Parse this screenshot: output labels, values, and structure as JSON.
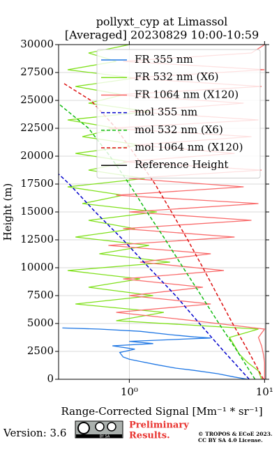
{
  "chart_data": {
    "type": "line",
    "title": "pollyxt_cyp at Limassol",
    "subtitle": "[Averaged] 20230829 10:00-10:59",
    "xlabel": "Range-Corrected Signal [Mm⁻¹ * sr⁻¹]",
    "ylabel": "Height (m)",
    "xscale": "log",
    "grid": true,
    "legend": "upper right",
    "xlim": [
      0.3,
      10.2
    ],
    "xticks": [
      {
        "value": 1,
        "label": "10⁰"
      },
      {
        "value": 10,
        "label": "10¹"
      }
    ],
    "ylim": [
      0,
      30000
    ],
    "yticks": [
      0,
      2500,
      5000,
      7500,
      10000,
      12500,
      15000,
      17500,
      20000,
      22500,
      25000,
      27500,
      30000
    ],
    "series": [
      {
        "name": "FR 355 nm",
        "color": "#1f77e4",
        "linestyle": "solid",
        "y": [
          0,
          200,
          500,
          800,
          1000,
          1300,
          1600,
          1800,
          2000,
          2400,
          2700,
          3000,
          3200,
          3400,
          3600,
          3700,
          3800,
          4000,
          4300,
          4500,
          4600
        ],
        "x": [
          7.5,
          6,
          4.5,
          3,
          2.2,
          1.6,
          1.2,
          1.0,
          0.9,
          0.85,
          1.1,
          0.75,
          1.5,
          1.0,
          2.5,
          4,
          3,
          2,
          1.2,
          0.6,
          0.32
        ]
      },
      {
        "name": "FR 532 nm (X6)",
        "color": "#7fe01a",
        "linestyle": "solid",
        "y": [
          0,
          750,
          1500,
          2250,
          3000,
          3750,
          4500,
          5250,
          6000,
          6750,
          7500,
          8250,
          9000,
          9750,
          10500,
          11250,
          12000,
          12750,
          13500,
          14250,
          15000,
          15750,
          16500,
          17250,
          18000,
          18750,
          19500,
          20250,
          21000,
          21750,
          22500,
          23250,
          24000,
          24750,
          25500,
          26250,
          27000,
          27750,
          28500,
          29250,
          30000
        ],
        "x": [
          9.5,
          9,
          7.5,
          6.5,
          6,
          5.5,
          9,
          0.8,
          1.8,
          0.4,
          1.5,
          0.5,
          1.2,
          0.35,
          2,
          0.6,
          1.4,
          0.4,
          1.1,
          0.5,
          1.6,
          0.45,
          0.9,
          0.35,
          1.3,
          0.5,
          1.0,
          0.4,
          1.2,
          0.45,
          0.8,
          0.35,
          1.4,
          0.5,
          0.9,
          0.4,
          1.1,
          0.35,
          0.8,
          0.5,
          1.0
        ]
      },
      {
        "name": "FR 1064 nm (X120)",
        "color": "#f96a6a",
        "linestyle": "solid",
        "y": [
          0,
          750,
          1500,
          2250,
          3000,
          3750,
          4500,
          5250,
          6000,
          6750,
          7500,
          8250,
          9000,
          9750,
          10500,
          11250,
          12000,
          12750,
          13500,
          14250,
          15000,
          15750,
          16500,
          17250,
          18000,
          18750,
          19500,
          20250,
          21000,
          21750,
          22500,
          23250,
          24000,
          24750,
          25500,
          26250,
          27000,
          27750,
          28500,
          29250,
          30000
        ],
        "x": [
          10,
          10,
          10,
          9.8,
          9.5,
          9,
          10,
          3,
          0.8,
          4,
          1,
          3.5,
          0.9,
          5,
          1.2,
          4,
          0.7,
          6,
          0.9,
          8,
          1,
          9,
          0.8,
          7,
          1,
          9.5,
          0.9,
          6,
          1.1,
          8,
          0.7,
          9,
          1,
          7,
          0.8,
          9.5,
          1,
          10,
          0.9,
          8,
          10
        ]
      },
      {
        "name": "mol 355 nm",
        "color": "#0000cc",
        "linestyle": "dashed",
        "y": [
          0,
          2500,
          5000,
          7500,
          10000,
          12500,
          15000,
          17500,
          18400
        ],
        "x": [
          7.7,
          5,
          3.3,
          2.2,
          1.4,
          0.9,
          0.56,
          0.36,
          0.3
        ]
      },
      {
        "name": "mol 532 nm (X6)",
        "color": "#11bb11",
        "linestyle": "dashed",
        "y": [
          0,
          2500,
          5000,
          7500,
          10000,
          12500,
          15000,
          17500,
          20000,
          22500,
          24700
        ],
        "x": [
          8.5,
          6.3,
          4.6,
          3.4,
          2.5,
          1.85,
          1.35,
          1.0,
          0.72,
          0.5,
          0.3
        ]
      },
      {
        "name": "mol 1064 nm (X120)",
        "color": "#dd1111",
        "linestyle": "dashed",
        "y": [
          0,
          2500,
          5000,
          7500,
          10000,
          12500,
          15000,
          17500,
          20000,
          22500,
          25000,
          26500
        ],
        "x": [
          9.8,
          7.6,
          5.8,
          4.5,
          3.5,
          2.7,
          2.05,
          1.55,
          1.12,
          0.8,
          0.52,
          0.33
        ]
      },
      {
        "name": "Reference Height",
        "color": "#000000",
        "linestyle": "solid",
        "y": [],
        "x": []
      }
    ]
  },
  "footer": {
    "version": "Version: 3.6",
    "badge": "BY SA",
    "notice": [
      "Preliminary",
      "Results."
    ],
    "copyright": [
      "© TROPOS & ECoE 2023.",
      "CC BY SA 4.0 License."
    ]
  }
}
